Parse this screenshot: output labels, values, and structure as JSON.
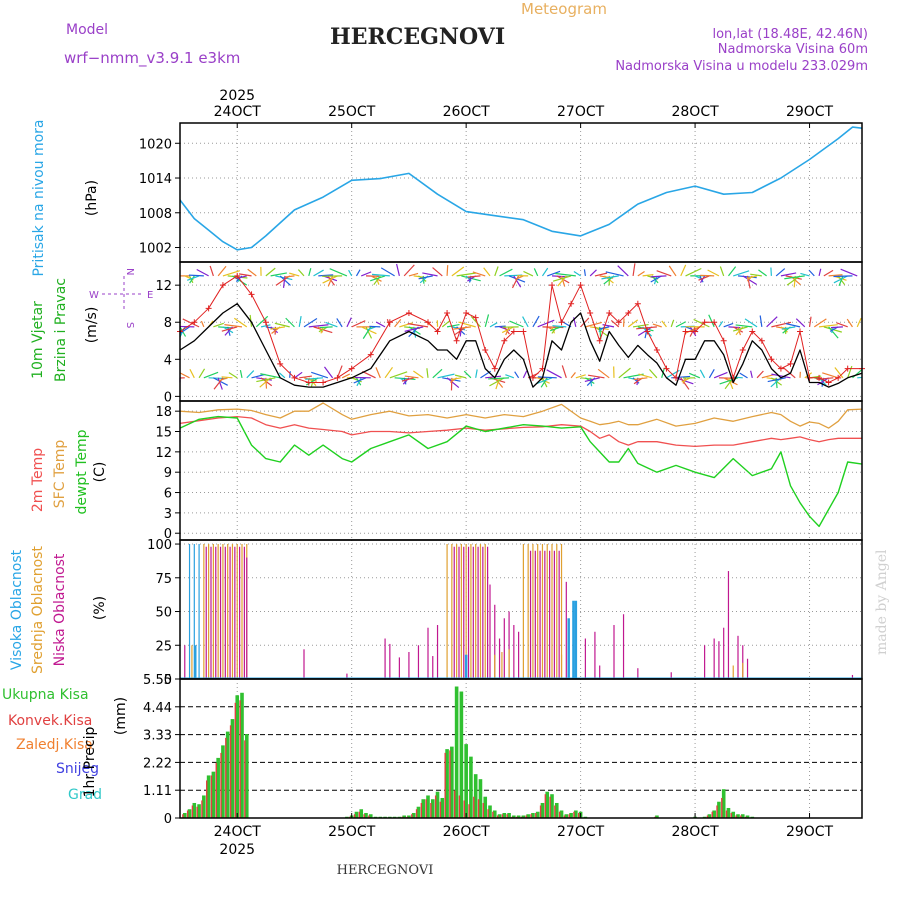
{
  "header": {
    "model_label": "Model",
    "model_name": "wrf−nmm_v3.9.1  e3km",
    "meteogram_label": "Meteogram",
    "station": "HERCEGNOVI",
    "coords": "lon,lat (18.48E, 42.46N)",
    "altitude": "Nadmorska Visina 60m",
    "model_altitude": "Nadmorska Visina u modelu 233.029m",
    "footer_station": "HERCEGNOVI",
    "watermark": "made by Angel"
  },
  "colors": {
    "pressure": "#29a6e6",
    "wind_speed": "#000000",
    "wind_gust": "#e02020",
    "t2m": "#f05050",
    "sfc": "#e0a040",
    "dew": "#20d020",
    "cloud_high": "#2aa0e0",
    "cloud_mid": "#e0a030",
    "cloud_low": "#c01890",
    "precip_total": "#30c030",
    "precip_conv": "#e04040",
    "precip_strat": "#f08030",
    "snow": "#4040e0",
    "hail": "#30c8c8"
  },
  "chart_data": [
    {
      "type": "line",
      "name": "pressure",
      "title": "Pritisak na nivou mora",
      "unit": "(hPa)",
      "x_unit": "hours since 2025-10-23 12:00 UTC",
      "x_ticks": [
        {
          "x": 12,
          "label": "24OCT",
          "year": "2025"
        },
        {
          "x": 36,
          "label": "25OCT"
        },
        {
          "x": 60,
          "label": "26OCT"
        },
        {
          "x": 84,
          "label": "27OCT"
        },
        {
          "x": 108,
          "label": "28OCT"
        },
        {
          "x": 132,
          "label": "29OCT"
        }
      ],
      "xlim": [
        0,
        143
      ],
      "ylim": [
        999.5,
        1023.5
      ],
      "yticks": [
        1002,
        1008,
        1014,
        1020
      ],
      "x": [
        0,
        3,
        6,
        9,
        12,
        15,
        18,
        24,
        30,
        36,
        42,
        48,
        54,
        60,
        66,
        72,
        78,
        84,
        90,
        96,
        102,
        108,
        114,
        120,
        126,
        132,
        138,
        141,
        143
      ],
      "series": [
        {
          "name": "SLP",
          "values": [
            1010.2,
            1007,
            1005,
            1003,
            1001.6,
            1002,
            1004,
            1008.5,
            1010.7,
            1013.6,
            1013.9,
            1014.8,
            1011.2,
            1008.2,
            1007.5,
            1006.8,
            1004.8,
            1004,
            1006,
            1009.5,
            1011.5,
            1012.6,
            1011.2,
            1011.5,
            1014,
            1017.2,
            1020.8,
            1022.8,
            1022.6
          ]
        }
      ]
    },
    {
      "type": "line",
      "name": "wind",
      "title1": "10m Vjetar",
      "title2": "Brzina i Pravac",
      "unit": "(m/s)",
      "compass_n": "N",
      "compass_w": "W",
      "compass_e": "E",
      "compass_s": "S",
      "xlim": [
        0,
        143
      ],
      "ylim": [
        -0.5,
        14.5
      ],
      "yticks": [
        0,
        4,
        8,
        12
      ],
      "arrow_levels": [
        13,
        7.5,
        2
      ],
      "x": [
        0,
        3,
        6,
        9,
        12,
        15,
        18,
        21,
        24,
        27,
        30,
        33,
        36,
        40,
        44,
        48,
        52,
        54,
        56,
        58,
        60,
        62,
        64,
        66,
        68,
        70,
        72,
        74,
        76,
        78,
        80,
        82,
        84,
        86,
        88,
        90,
        92,
        94,
        96,
        98,
        100,
        102,
        104,
        106,
        108,
        110,
        112,
        114,
        116,
        118,
        120,
        122,
        124,
        126,
        128,
        130,
        132,
        134,
        136,
        138,
        140,
        143
      ],
      "series": [
        {
          "name": "speed",
          "values": [
            5,
            6,
            7.5,
            9,
            10,
            8,
            5,
            2,
            1.2,
            1,
            1,
            1.5,
            2,
            3,
            6,
            7,
            6,
            5,
            5,
            4,
            6,
            6,
            3,
            2,
            4,
            5,
            4,
            1,
            2,
            6,
            5,
            8,
            9,
            6,
            3.8,
            7,
            5.5,
            4.2,
            5.5,
            4.5,
            3.6,
            2,
            1.2,
            4,
            4,
            6,
            6,
            4.5,
            1.5,
            3.5,
            6,
            5,
            3,
            2,
            2.5,
            5,
            1.5,
            1.5,
            1,
            1.4,
            2,
            2.5
          ]
        },
        {
          "name": "gust",
          "values": [
            7,
            8,
            9.5,
            12,
            13,
            11,
            8,
            3.5,
            2,
            1.5,
            1.5,
            2,
            3,
            4.5,
            8,
            9,
            8,
            7,
            9,
            6,
            9,
            8.5,
            5,
            3,
            6,
            7,
            7,
            2,
            3,
            12,
            8,
            10,
            12,
            9,
            6,
            9,
            8,
            9,
            10,
            7,
            5,
            3,
            2,
            7,
            7,
            8,
            8,
            6,
            2,
            5,
            7,
            6,
            4,
            3,
            3.5,
            7,
            2,
            2,
            1.5,
            2,
            3,
            3
          ]
        }
      ]
    },
    {
      "type": "line",
      "name": "temperature",
      "title1": "2m Temp",
      "title2": "SFC Temp",
      "title3": "dewpt Temp",
      "unit": "(C)",
      "xlim": [
        0,
        143
      ],
      "ylim": [
        -1,
        19.5
      ],
      "yticks": [
        0,
        3,
        6,
        9,
        12,
        15,
        18
      ],
      "x": [
        0,
        4,
        8,
        12,
        15,
        18,
        21,
        24,
        27,
        30,
        34,
        36,
        40,
        44,
        48,
        52,
        56,
        60,
        64,
        68,
        72,
        76,
        80,
        84,
        86,
        88,
        90,
        92,
        94,
        96,
        100,
        104,
        108,
        112,
        116,
        120,
        124,
        126,
        128,
        130,
        132,
        134,
        136,
        138,
        140,
        143
      ],
      "series": [
        {
          "name": "2m",
          "values": [
            16.2,
            16.6,
            17,
            17.2,
            17,
            16,
            15.5,
            16,
            15.5,
            15.3,
            15,
            14.5,
            15,
            15,
            14.8,
            15,
            15.2,
            15.5,
            15.2,
            15.4,
            15.6,
            15.7,
            16,
            15.8,
            15,
            14,
            14.5,
            13.5,
            13,
            13.5,
            13.5,
            13,
            12.8,
            13,
            13,
            13.5,
            14,
            13.8,
            14,
            14.2,
            13.8,
            13.5,
            13.8,
            14,
            14,
            14
          ]
        },
        {
          "name": "sfc",
          "values": [
            18,
            17.8,
            18.2,
            18.3,
            18.1,
            17.5,
            17,
            18,
            18,
            19.2,
            17.5,
            16.8,
            17.5,
            18,
            17.3,
            17.5,
            17,
            17.5,
            17,
            17.5,
            17.2,
            18,
            19,
            17,
            16.5,
            16,
            16.2,
            16.5,
            16,
            16,
            16.8,
            15.8,
            16.2,
            17,
            16.5,
            17.2,
            17.8,
            17.5,
            16.5,
            15.8,
            16.4,
            16.2,
            15.5,
            16.5,
            18.2,
            18.3
          ]
        },
        {
          "name": "dew",
          "values": [
            15.5,
            16.8,
            17.2,
            17,
            13,
            11,
            10.5,
            13,
            11.5,
            13,
            11,
            10.5,
            12.5,
            13.5,
            14.5,
            12.5,
            13.5,
            15.8,
            15,
            15.5,
            16,
            15.8,
            15.5,
            15.7,
            13.5,
            12,
            10.5,
            10.5,
            12.5,
            10.3,
            9,
            10,
            9,
            8.2,
            11,
            8.5,
            9.5,
            12,
            7,
            4.5,
            2.5,
            1,
            3.5,
            6,
            10.5,
            10.2
          ]
        }
      ]
    },
    {
      "type": "bar",
      "name": "cloud",
      "title1": "Visoka Oblacnost",
      "title2": "Srednja Oblacnost",
      "title3": "Niska Oblacnost",
      "unit": "(%)",
      "xlim": [
        0,
        143
      ],
      "ylim": [
        0,
        103
      ],
      "yticks": [
        0,
        25,
        50,
        75,
        100
      ],
      "segments": [
        {
          "series": "high",
          "x0": 2,
          "x1": 4,
          "value": 100
        },
        {
          "series": "mid",
          "x0": 5,
          "x1": 14,
          "value": 100
        },
        {
          "series": "low",
          "x0": 5,
          "x1": 13.5,
          "value": 98
        },
        {
          "series": "mid",
          "x0": 56,
          "x1": 64,
          "value": 100
        },
        {
          "series": "low",
          "x0": 57,
          "x1": 64,
          "value": 98
        },
        {
          "series": "mid",
          "x0": 72,
          "x1": 80,
          "value": 100
        },
        {
          "series": "low",
          "x0": 73,
          "x1": 79,
          "value": 95
        }
      ],
      "bars": [
        {
          "series": "low",
          "x": 1,
          "value": 25
        },
        {
          "series": "low",
          "x": 14,
          "value": 90
        },
        {
          "series": "low",
          "x": 26,
          "value": 22
        },
        {
          "series": "low",
          "x": 35,
          "value": 4
        },
        {
          "series": "low",
          "x": 43,
          "value": 30
        },
        {
          "series": "low",
          "x": 44,
          "value": 26
        },
        {
          "series": "low",
          "x": 46,
          "value": 16
        },
        {
          "series": "low",
          "x": 48,
          "value": 20
        },
        {
          "series": "low",
          "x": 50,
          "value": 25
        },
        {
          "series": "low",
          "x": 52,
          "value": 38
        },
        {
          "series": "low",
          "x": 53,
          "value": 17
        },
        {
          "series": "low",
          "x": 54,
          "value": 40
        },
        {
          "series": "low",
          "x": 65,
          "value": 70
        },
        {
          "series": "low",
          "x": 66,
          "value": 55
        },
        {
          "series": "low",
          "x": 67,
          "value": 30
        },
        {
          "series": "low",
          "x": 68,
          "value": 45
        },
        {
          "series": "low",
          "x": 69,
          "value": 50
        },
        {
          "series": "low",
          "x": 70,
          "value": 40
        },
        {
          "series": "low",
          "x": 71,
          "value": 35
        },
        {
          "series": "low",
          "x": 81,
          "value": 72
        },
        {
          "series": "low",
          "x": 85,
          "value": 30
        },
        {
          "series": "low",
          "x": 87,
          "value": 35
        },
        {
          "series": "low",
          "x": 88,
          "value": 10
        },
        {
          "series": "low",
          "x": 91,
          "value": 40
        },
        {
          "series": "low",
          "x": 93,
          "value": 48
        },
        {
          "series": "low",
          "x": 96,
          "value": 8
        },
        {
          "series": "low",
          "x": 103,
          "value": 5
        },
        {
          "series": "low",
          "x": 110,
          "value": 25
        },
        {
          "series": "low",
          "x": 112,
          "value": 30
        },
        {
          "series": "low",
          "x": 113,
          "value": 28
        },
        {
          "series": "low",
          "x": 114,
          "value": 38
        },
        {
          "series": "low",
          "x": 115,
          "value": 80
        },
        {
          "series": "low",
          "x": 117,
          "value": 32
        },
        {
          "series": "low",
          "x": 118,
          "value": 25
        },
        {
          "series": "low",
          "x": 119,
          "value": 15
        },
        {
          "series": "low",
          "x": 141,
          "value": 3
        },
        {
          "series": "mid",
          "x": 2.5,
          "value": 25
        },
        {
          "series": "mid",
          "x": 66,
          "value": 18
        },
        {
          "series": "mid",
          "x": 67.5,
          "value": 20
        },
        {
          "series": "mid",
          "x": 69,
          "value": 22
        },
        {
          "series": "mid",
          "x": 80,
          "value": 18
        },
        {
          "series": "mid",
          "x": 116,
          "value": 10
        },
        {
          "series": "mid",
          "x": 118,
          "value": 12
        },
        {
          "series": "high",
          "x": 3.2,
          "value": 25
        },
        {
          "series": "high",
          "x": 60,
          "value": 18
        },
        {
          "series": "high",
          "x": 81.5,
          "value": 45
        },
        {
          "series": "high",
          "x": 82.5,
          "value": 58
        },
        {
          "series": "high",
          "x": 83,
          "value": 58
        }
      ]
    },
    {
      "type": "bar",
      "name": "precip",
      "title1": "1hr Precip",
      "unit": "(mm)",
      "legend": [
        "Ukupna Kisa",
        "Konvek.Kisa",
        "Zaledj.Kisa",
        "Snijeg",
        "Grad"
      ],
      "xlim": [
        0,
        143
      ],
      "ylim": [
        0,
        5.55
      ],
      "yticks": [
        0,
        1.11,
        2.22,
        3.33,
        4.44,
        5.55
      ],
      "ytick_labels": [
        "0",
        "1.11",
        "2.22",
        "3.33",
        "4.44",
        "5.55"
      ],
      "x": [
        1,
        2,
        3,
        4,
        5,
        6,
        7,
        8,
        9,
        10,
        11,
        12,
        13,
        14,
        35,
        36,
        37,
        38,
        39,
        40,
        41,
        42,
        43,
        44,
        45,
        46,
        47,
        48,
        49,
        50,
        51,
        52,
        53,
        54,
        55,
        56,
        57,
        58,
        59,
        60,
        61,
        62,
        63,
        64,
        65,
        66,
        67,
        68,
        69,
        70,
        71,
        72,
        73,
        74,
        75,
        76,
        77,
        78,
        79,
        80,
        81,
        82,
        83,
        84,
        85,
        100,
        108,
        110,
        111,
        112,
        113,
        114,
        115,
        116,
        117,
        118,
        119,
        120
      ],
      "series": [
        {
          "name": "total",
          "values": [
            0.2,
            0.35,
            0.6,
            0.55,
            0.9,
            1.7,
            1.85,
            2.4,
            2.9,
            3.45,
            3.95,
            4.9,
            5,
            3.35,
            0.05,
            0.1,
            0.25,
            0.35,
            0.2,
            0.15,
            0.05,
            0.05,
            0.05,
            0.05,
            0.05,
            0.05,
            0.1,
            0.1,
            0.2,
            0.45,
            0.75,
            0.9,
            0.75,
            1.05,
            0.8,
            2.75,
            2.85,
            5.25,
            5.05,
            2.95,
            2.45,
            1.75,
            1.55,
            0.85,
            0.5,
            0.3,
            0.15,
            0.2,
            0.2,
            0.1,
            0.1,
            0.1,
            0.15,
            0.2,
            0.25,
            0.6,
            1.05,
            0.95,
            0.6,
            0.3,
            0.15,
            0.2,
            0.3,
            0.25,
            0.05,
            0.1,
            0.05,
            0.05,
            0.15,
            0.3,
            0.65,
            1.15,
            0.4,
            0.25,
            0.15,
            0.15,
            0.1,
            0.05
          ]
        },
        {
          "name": "conv",
          "values": [
            0.15,
            0.3,
            0.5,
            0.45,
            0.7,
            1.5,
            1.7,
            2.2,
            2.6,
            3.2,
            3.7,
            4.6,
            4.7,
            3.1,
            0.02,
            0.05,
            0.15,
            0.25,
            0.15,
            0.1,
            0.02,
            0.02,
            0.02,
            0.02,
            0.02,
            0.02,
            0.05,
            0.05,
            0.15,
            0.35,
            0.6,
            0.75,
            0.6,
            0.9,
            0.65,
            2.6,
            2.7,
            1.1,
            0.9,
            0.7,
            0.55,
            0.85,
            0.75,
            0.6,
            0.35,
            0.25,
            0.1,
            0.15,
            0.15,
            0.05,
            0.05,
            0.05,
            0.1,
            0.15,
            0.2,
            0.5,
            0.95,
            0.85,
            0.5,
            0.25,
            0.1,
            0.15,
            0.25,
            0.2,
            0.02,
            0.05,
            0.02,
            0.02,
            0.1,
            0.25,
            0.5,
            0.8,
            0.3,
            0.2,
            0.1,
            0.1,
            0.05,
            0.02
          ]
        }
      ]
    }
  ]
}
